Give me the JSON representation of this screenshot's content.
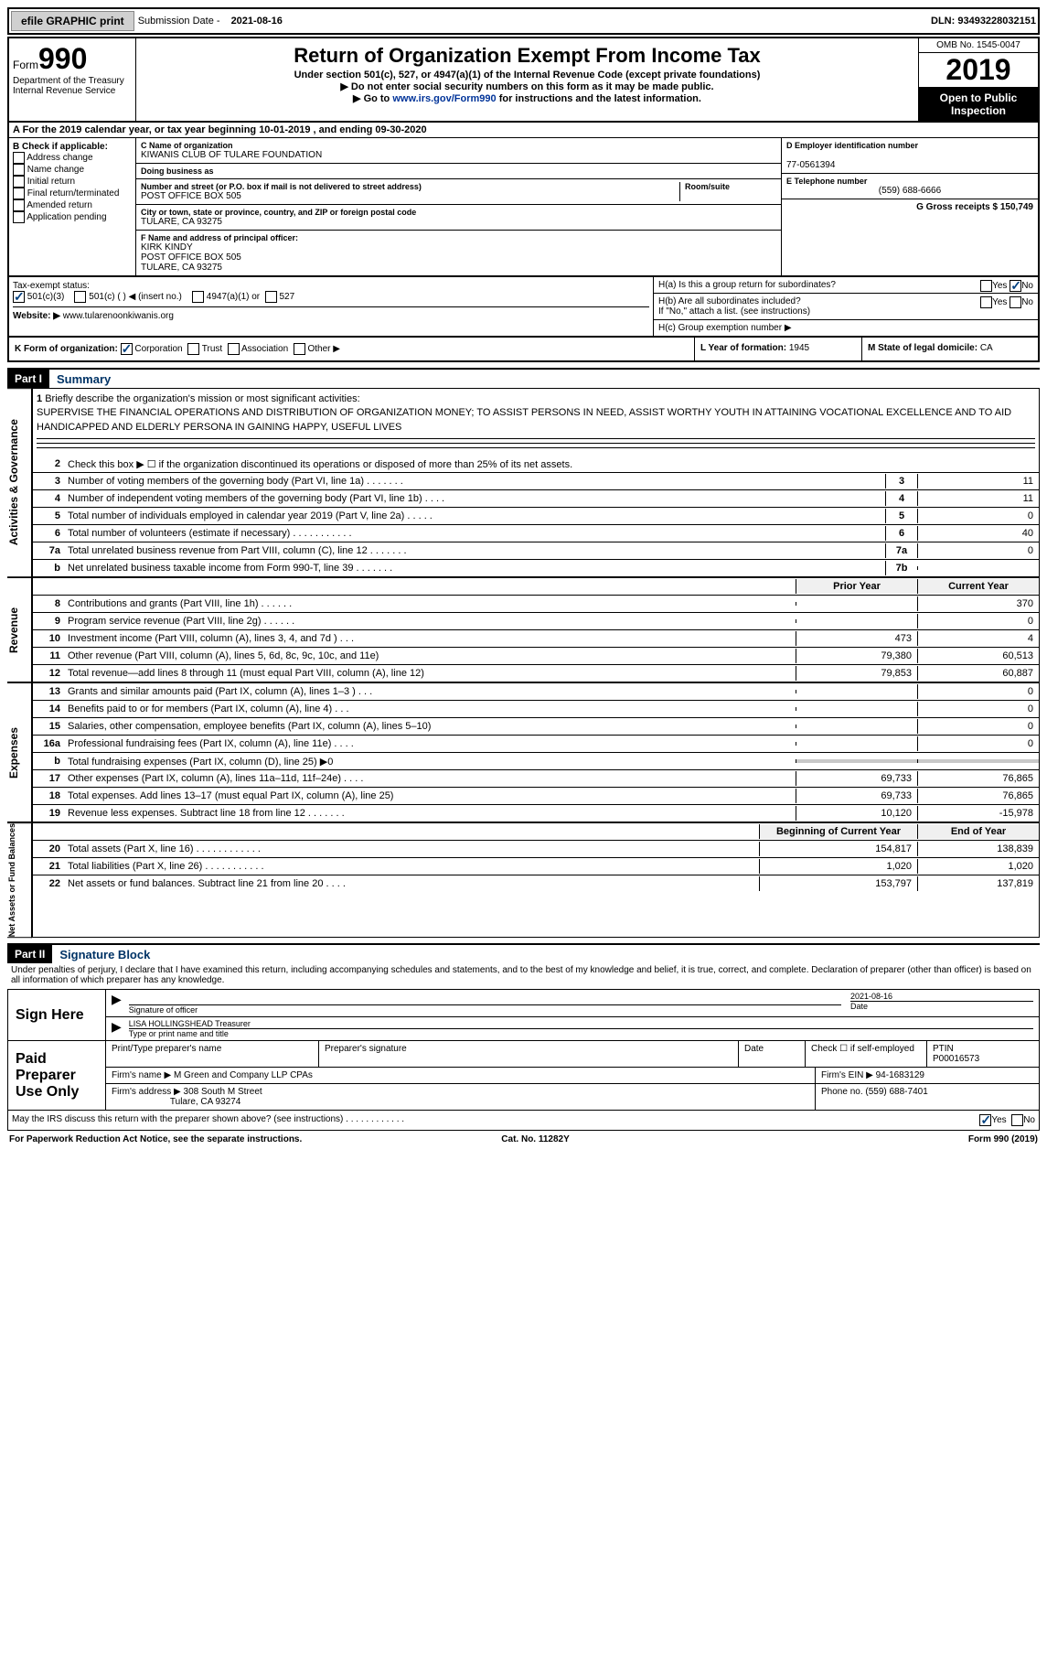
{
  "top": {
    "efile": "efile GRAPHIC print",
    "sub_label": "Submission Date - ",
    "sub_date": "2021-08-16",
    "dln": "DLN: 93493228032151"
  },
  "header": {
    "form_word": "Form",
    "form_num": "990",
    "dept": "Department of the Treasury",
    "irs": "Internal Revenue Service",
    "title": "Return of Organization Exempt From Income Tax",
    "subtitle": "Under section 501(c), 527, or 4947(a)(1) of the Internal Revenue Code (except private foundations)",
    "note1": "▶ Do not enter social security numbers on this form as it may be made public.",
    "note2_pre": "▶ Go to ",
    "note2_link": "www.irs.gov/Form990",
    "note2_post": " for instructions and the latest information.",
    "omb": "OMB No. 1545-0047",
    "year": "2019",
    "open": "Open to Public Inspection"
  },
  "lineA": "A For the 2019 calendar year, or tax year beginning 10-01-2019    , and ending 09-30-2020",
  "colB": {
    "title": "B Check if applicable:",
    "addr": "Address change",
    "name": "Name change",
    "init": "Initial return",
    "final": "Final return/terminated",
    "amend": "Amended return",
    "app": "Application pending"
  },
  "colC": {
    "c_label": "C Name of organization",
    "c_name": "KIWANIS CLUB OF TULARE FOUNDATION",
    "dba_label": "Doing business as",
    "dba": "",
    "street_label": "Number and street (or P.O. box if mail is not delivered to street address)",
    "room_label": "Room/suite",
    "street": "POST OFFICE BOX 505",
    "city_label": "City or town, state or province, country, and ZIP or foreign postal code",
    "city": "TULARE, CA  93275",
    "f_label": "F Name and address of principal officer:",
    "f_name": "KIRK KINDY",
    "f_addr": "POST OFFICE BOX 505",
    "f_city": "TULARE, CA  93275"
  },
  "colD": {
    "d_label": "D Employer identification number",
    "d_val": "77-0561394",
    "e_label": "E Telephone number",
    "e_val": "(559) 688-6666",
    "g_label": "G Gross receipts $ ",
    "g_val": "150,749"
  },
  "rowI": {
    "tax_label": "Tax-exempt status:",
    "c3": "501(c)(3)",
    "c": "501(c) (  ) ◀ (insert no.)",
    "a1": "4947(a)(1) or",
    "s527": "527",
    "j_label": "Website: ▶",
    "j_val": "www.tularenoonkiwanis.org",
    "ha": "H(a)  Is this a group return for subordinates?",
    "hb": "H(b)  Are all subordinates included?",
    "hb_note": "If \"No,\" attach a list. (see instructions)",
    "hc": "H(c)  Group exemption number ▶"
  },
  "rowK": {
    "k": "K Form of organization:",
    "corp": "Corporation",
    "trust": "Trust",
    "assoc": "Association",
    "other": "Other ▶",
    "l": "L Year of formation: ",
    "l_val": "1945",
    "m": "M State of legal domicile: ",
    "m_val": "CA"
  },
  "part1": {
    "header": "Part I",
    "title": "Summary",
    "q1": "Briefly describe the organization's mission or most significant activities:",
    "mission": "SUPERVISE THE FINANCIAL OPERATIONS AND DISTRIBUTION OF ORGANIZATION MONEY; TO ASSIST PERSONS IN NEED, ASSIST WORTHY YOUTH IN ATTAINING VOCATIONAL EXCELLENCE AND TO AID HANDICAPPED AND ELDERLY PERSONA IN GAINING HAPPY, USEFUL LIVES",
    "q2": "Check this box ▶ ☐ if the organization discontinued its operations or disposed of more than 25% of its net assets.",
    "governance_label": "Activities & Governance",
    "revenue_label": "Revenue",
    "expenses_label": "Expenses",
    "netassets_label": "Net Assets or Fund Balances",
    "prior": "Prior Year",
    "current": "Current Year",
    "begin": "Beginning of Current Year",
    "end": "End of Year",
    "rows_gov": [
      {
        "n": "3",
        "d": "Number of voting members of the governing body (Part VI, line 1a)  .   .   .   .   .   .   .",
        "box": "3",
        "c": "11"
      },
      {
        "n": "4",
        "d": "Number of independent voting members of the governing body (Part VI, line 1b)  .   .   .   .",
        "box": "4",
        "c": "11"
      },
      {
        "n": "5",
        "d": "Total number of individuals employed in calendar year 2019 (Part V, line 2a)  .   .   .   .   .",
        "box": "5",
        "c": "0"
      },
      {
        "n": "6",
        "d": "Total number of volunteers (estimate if necessary)   .   .   .   .   .   .   .   .   .   .   .",
        "box": "6",
        "c": "40"
      },
      {
        "n": "7a",
        "d": "Total unrelated business revenue from Part VIII, column (C), line 12  .   .   .   .   .   .   .",
        "box": "7a",
        "c": "0"
      },
      {
        "n": "b",
        "d": "Net unrelated business taxable income from Form 990-T, line 39   .   .   .   .   .   .   .",
        "box": "7b",
        "c": ""
      }
    ],
    "rows_rev": [
      {
        "n": "8",
        "d": "Contributions and grants (Part VIII, line 1h)   .   .   .   .   .   .",
        "p": "",
        "c": "370"
      },
      {
        "n": "9",
        "d": "Program service revenue (Part VIII, line 2g)   .   .   .   .   .   .",
        "p": "",
        "c": "0"
      },
      {
        "n": "10",
        "d": "Investment income (Part VIII, column (A), lines 3, 4, and 7d )   .   .   .",
        "p": "473",
        "c": "4"
      },
      {
        "n": "11",
        "d": "Other revenue (Part VIII, column (A), lines 5, 6d, 8c, 9c, 10c, and 11e)",
        "p": "79,380",
        "c": "60,513"
      },
      {
        "n": "12",
        "d": "Total revenue—add lines 8 through 11 (must equal Part VIII, column (A), line 12)",
        "p": "79,853",
        "c": "60,887"
      }
    ],
    "rows_exp": [
      {
        "n": "13",
        "d": "Grants and similar amounts paid (Part IX, column (A), lines 1–3 )   .   .   .",
        "p": "",
        "c": "0"
      },
      {
        "n": "14",
        "d": "Benefits paid to or for members (Part IX, column (A), line 4)   .   .   .",
        "p": "",
        "c": "0"
      },
      {
        "n": "15",
        "d": "Salaries, other compensation, employee benefits (Part IX, column (A), lines 5–10)",
        "p": "",
        "c": "0"
      },
      {
        "n": "16a",
        "d": "Professional fundraising fees (Part IX, column (A), line 11e)   .   .   .   .",
        "p": "",
        "c": "0"
      },
      {
        "n": "b",
        "d": "Total fundraising expenses (Part IX, column (D), line 25) ▶0",
        "p": "shaded",
        "c": "shaded"
      },
      {
        "n": "17",
        "d": "Other expenses (Part IX, column (A), lines 11a–11d, 11f–24e)   .   .   .   .",
        "p": "69,733",
        "c": "76,865"
      },
      {
        "n": "18",
        "d": "Total expenses. Add lines 13–17 (must equal Part IX, column (A), line 25)",
        "p": "69,733",
        "c": "76,865"
      },
      {
        "n": "19",
        "d": "Revenue less expenses. Subtract line 18 from line 12  .   .   .   .   .   .   .",
        "p": "10,120",
        "c": "-15,978"
      }
    ],
    "rows_net": [
      {
        "n": "20",
        "d": "Total assets (Part X, line 16)  .   .   .   .   .   .   .   .   .   .   .   .",
        "p": "154,817",
        "c": "138,839"
      },
      {
        "n": "21",
        "d": "Total liabilities (Part X, line 26)  .   .   .   .   .   .   .   .   .   .   .",
        "p": "1,020",
        "c": "1,020"
      },
      {
        "n": "22",
        "d": "Net assets or fund balances. Subtract line 21 from line 20   .   .   .   .",
        "p": "153,797",
        "c": "137,819"
      }
    ]
  },
  "part2": {
    "header": "Part II",
    "title": "Signature Block",
    "perjury": "Under penalties of perjury, I declare that I have examined this return, including accompanying schedules and statements, and to the best of my knowledge and belief, it is true, correct, and complete. Declaration of preparer (other than officer) is based on all information of which preparer has any knowledge.",
    "sign_here": "Sign Here",
    "sig_officer": "Signature of officer",
    "date_label": "Date",
    "sig_date": "2021-08-16",
    "typed_name": "LISA HOLLINGSHEAD Treasurer",
    "typed_label": "Type or print name and title",
    "paid": "Paid Preparer Use Only",
    "pt_name_label": "Print/Type preparer's name",
    "pt_sig_label": "Preparer's signature",
    "pt_date_label": "Date",
    "check_self": "Check ☐ if self-employed",
    "ptin_label": "PTIN",
    "ptin": "P00016573",
    "firm_name_label": "Firm's name    ▶",
    "firm_name": "M Green and Company LLP CPAs",
    "firm_ein_label": "Firm's EIN ▶",
    "firm_ein": "94-1683129",
    "firm_addr_label": "Firm's address ▶",
    "firm_addr1": "308 South M Street",
    "firm_addr2": "Tulare, CA  93274",
    "phone_label": "Phone no. ",
    "phone": "(559) 688-7401",
    "discuss": "May the IRS discuss this return with the preparer shown above? (see instructions)   .   .   .   .   .   .   .   .   .   .   .   ."
  },
  "footer": {
    "left": "For Paperwork Reduction Act Notice, see the separate instructions.",
    "mid": "Cat. No. 11282Y",
    "right": "Form 990 (2019)"
  },
  "yes": "Yes",
  "no": "No"
}
